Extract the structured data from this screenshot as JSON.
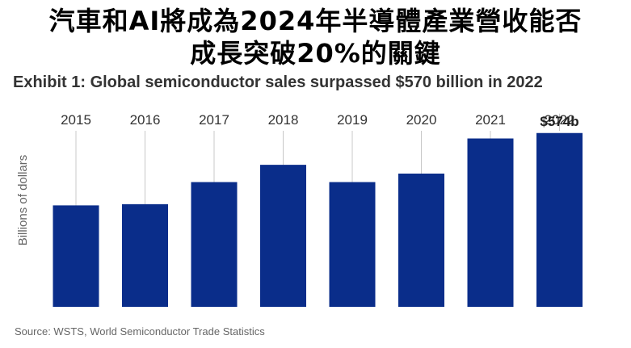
{
  "headline": {
    "line1": "汽車和AI將成為2024年半導體產業營收能否",
    "line2": "成長突破20%的關鍵"
  },
  "exhibit_title": "Exhibit 1: Global semiconductor sales surpassed $570 billion in 2022",
  "source": "Source: WSTS, World Semiconductor Trade Statistics",
  "colors": {
    "bar": "#0a2d8a",
    "line": "#c8c8c8"
  },
  "chart_data": {
    "type": "bar",
    "title": "Global semiconductor sales surpassed $570 billion in 2022",
    "xlabel": "",
    "ylabel": "Billions of dollars",
    "categories": [
      "2015",
      "2016",
      "2017",
      "2018",
      "2019",
      "2020",
      "2021",
      "2022"
    ],
    "values": [
      335,
      339,
      412,
      469,
      412,
      440,
      556,
      574
    ],
    "data_labels": [
      "",
      "",
      "",
      "",
      "",
      "",
      "",
      "$574b"
    ],
    "ylim": [
      0,
      720
    ],
    "grid": false
  }
}
